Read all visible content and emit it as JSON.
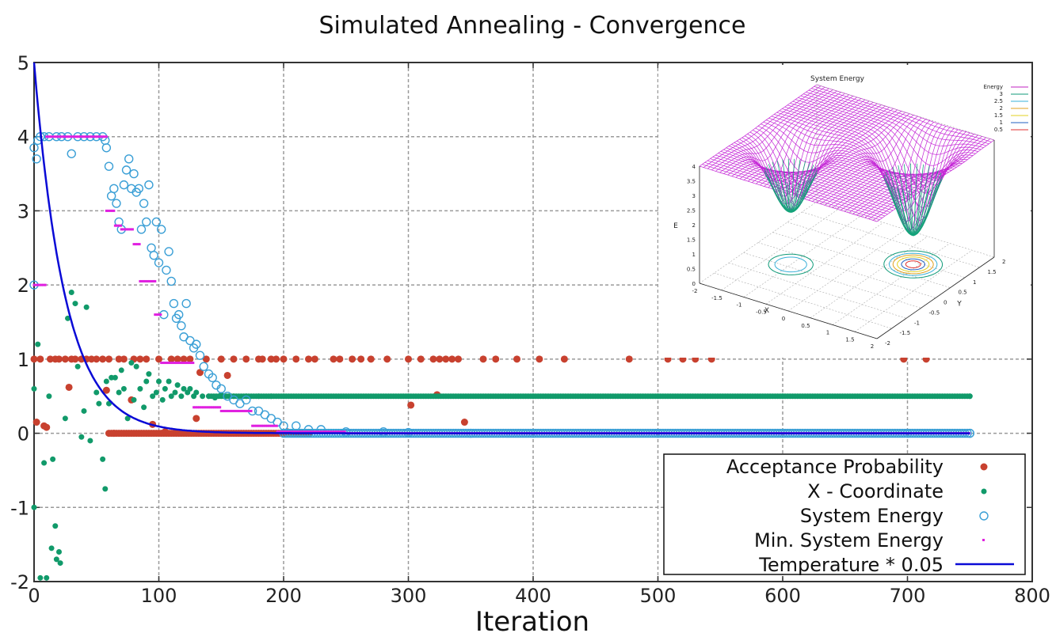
{
  "chart_data": [
    {
      "type": "scatter",
      "title": "Simulated Annealing - Convergence",
      "xlabel": "Iteration",
      "ylabel": "",
      "xlim": [
        0,
        800
      ],
      "ylim": [
        -2,
        5
      ],
      "xticks": [
        "0",
        "100",
        "200",
        "300",
        "400",
        "500",
        "600",
        "700",
        "800"
      ],
      "yticks": [
        "-2",
        "-1",
        "0",
        "1",
        "2",
        "3",
        "4",
        "5"
      ],
      "grid": true,
      "legend": "bottom-right",
      "series": [
        {
          "name": "Acceptance Probability",
          "style": "filled-circle",
          "color": "#c8412f",
          "points": [
            [
              0,
              1
            ],
            [
              2,
              0.15
            ],
            [
              5,
              1
            ],
            [
              8,
              0.1
            ],
            [
              10,
              0.08
            ],
            [
              13,
              1
            ],
            [
              17,
              1
            ],
            [
              20,
              1
            ],
            [
              25,
              1
            ],
            [
              28,
              0.62
            ],
            [
              30,
              1
            ],
            [
              33,
              1
            ],
            [
              38,
              1
            ],
            [
              42,
              1
            ],
            [
              46,
              1
            ],
            [
              50,
              1
            ],
            [
              55,
              1
            ],
            [
              58,
              0.58
            ],
            [
              60,
              1
            ],
            [
              64,
              0
            ],
            [
              68,
              1
            ],
            [
              72,
              1
            ],
            [
              78,
              0.45
            ],
            [
              80,
              1
            ],
            [
              85,
              1
            ],
            [
              90,
              1
            ],
            [
              95,
              0.12
            ],
            [
              100,
              1
            ],
            [
              105,
              0.02
            ],
            [
              110,
              1
            ],
            [
              115,
              1
            ],
            [
              120,
              1
            ],
            [
              125,
              1
            ],
            [
              130,
              0.2
            ],
            [
              133,
              0.82
            ],
            [
              138,
              1
            ],
            [
              150,
              1
            ],
            [
              155,
              0.78
            ],
            [
              160,
              1
            ],
            [
              170,
              1
            ],
            [
              180,
              1
            ],
            [
              183,
              1
            ],
            [
              190,
              1
            ],
            [
              194,
              1
            ],
            [
              200,
              1
            ],
            [
              203,
              0.02
            ],
            [
              210,
              1
            ],
            [
              220,
              1
            ],
            [
              225,
              1
            ],
            [
              240,
              1
            ],
            [
              245,
              1
            ],
            [
              255,
              1
            ],
            [
              262,
              1
            ],
            [
              270,
              1
            ],
            [
              283,
              1
            ],
            [
              300,
              1
            ],
            [
              302,
              0.38
            ],
            [
              310,
              1
            ],
            [
              320,
              1
            ],
            [
              323,
              0.52
            ],
            [
              325,
              1
            ],
            [
              330,
              1
            ],
            [
              335,
              1
            ],
            [
              340,
              1
            ],
            [
              345,
              0.15
            ],
            [
              360,
              1
            ],
            [
              370,
              1
            ],
            [
              387,
              1
            ],
            [
              405,
              1
            ],
            [
              425,
              1
            ],
            [
              477,
              1
            ],
            [
              508,
              1
            ],
            [
              520,
              1
            ],
            [
              530,
              1
            ],
            [
              543,
              1
            ],
            [
              697,
              1
            ],
            [
              715,
              1
            ]
          ]
        },
        {
          "name": "X - Coordinate",
          "style": "filled-dot",
          "color": "#119a6a",
          "points": [
            [
              0,
              -1
            ],
            [
              0,
              0.6
            ],
            [
              3,
              1.2
            ],
            [
              5,
              -1.95
            ],
            [
              8,
              -0.4
            ],
            [
              10,
              -1.95
            ],
            [
              12,
              0.5
            ],
            [
              14,
              -1.55
            ],
            [
              15,
              -0.35
            ],
            [
              17,
              -1.25
            ],
            [
              18,
              -1.7
            ],
            [
              20,
              -1.6
            ],
            [
              21,
              -1.75
            ],
            [
              25,
              0.2
            ],
            [
              27,
              1.55
            ],
            [
              30,
              1.9
            ],
            [
              33,
              1.75
            ],
            [
              35,
              0.9
            ],
            [
              38,
              -0.05
            ],
            [
              40,
              0.3
            ],
            [
              42,
              1.7
            ],
            [
              45,
              -0.1
            ],
            [
              50,
              0.55
            ],
            [
              52,
              0.4
            ],
            [
              55,
              -0.35
            ],
            [
              57,
              -0.75
            ],
            [
              58,
              0.7
            ],
            [
              60,
              0.4
            ],
            [
              62,
              0.75
            ],
            [
              65,
              0.75
            ],
            [
              68,
              0.55
            ],
            [
              70,
              0.85
            ],
            [
              72,
              0.6
            ],
            [
              75,
              0.2
            ],
            [
              78,
              0.95
            ],
            [
              80,
              0.45
            ],
            [
              82,
              0.9
            ],
            [
              85,
              0.6
            ],
            [
              88,
              0.35
            ],
            [
              90,
              0.7
            ],
            [
              92,
              0.8
            ],
            [
              95,
              0.5
            ],
            [
              98,
              0.55
            ],
            [
              100,
              0.7
            ],
            [
              103,
              0.45
            ],
            [
              105,
              0.6
            ],
            [
              108,
              0.7
            ],
            [
              110,
              0.5
            ],
            [
              113,
              0.55
            ],
            [
              115,
              0.65
            ],
            [
              118,
              0.5
            ],
            [
              120,
              0.6
            ],
            [
              123,
              0.55
            ],
            [
              125,
              0.6
            ],
            [
              128,
              0.5
            ],
            [
              130,
              0.55
            ],
            [
              135,
              0.5
            ],
            [
              140,
              0.5
            ],
            [
              145,
              0.48
            ],
            [
              150,
              0.52
            ],
            [
              160,
              0.5
            ],
            [
              170,
              0.5
            ],
            [
              180,
              0.5
            ],
            [
              190,
              0.5
            ],
            [
              200,
              0.5
            ],
            [
              300,
              0.5
            ],
            [
              400,
              0.5
            ],
            [
              500,
              0.5
            ],
            [
              600,
              0.5
            ],
            [
              700,
              0.5
            ],
            [
              750,
              0.5
            ]
          ]
        },
        {
          "name": "System Energy",
          "style": "open-circle",
          "color": "#3a9fd6",
          "points": [
            [
              0,
              2
            ],
            [
              0,
              3.85
            ],
            [
              2,
              3.7
            ],
            [
              3,
              3.95
            ],
            [
              5,
              4
            ],
            [
              8,
              4
            ],
            [
              12,
              4
            ],
            [
              18,
              4
            ],
            [
              22,
              4
            ],
            [
              27,
              4
            ],
            [
              30,
              3.77
            ],
            [
              35,
              4
            ],
            [
              40,
              4
            ],
            [
              45,
              4
            ],
            [
              50,
              4
            ],
            [
              55,
              4
            ],
            [
              57,
              3.95
            ],
            [
              58,
              3.85
            ],
            [
              60,
              3.6
            ],
            [
              62,
              3.2
            ],
            [
              64,
              3.3
            ],
            [
              66,
              3.1
            ],
            [
              68,
              2.85
            ],
            [
              70,
              2.75
            ],
            [
              72,
              3.35
            ],
            [
              74,
              3.55
            ],
            [
              76,
              3.7
            ],
            [
              78,
              3.3
            ],
            [
              80,
              3.5
            ],
            [
              82,
              3.25
            ],
            [
              84,
              3.3
            ],
            [
              86,
              2.75
            ],
            [
              88,
              3.1
            ],
            [
              90,
              2.85
            ],
            [
              92,
              3.35
            ],
            [
              94,
              2.5
            ],
            [
              96,
              2.4
            ],
            [
              98,
              2.85
            ],
            [
              100,
              2.3
            ],
            [
              102,
              2.75
            ],
            [
              104,
              1.6
            ],
            [
              106,
              2.2
            ],
            [
              108,
              2.45
            ],
            [
              110,
              2.05
            ],
            [
              112,
              1.75
            ],
            [
              114,
              1.55
            ],
            [
              116,
              1.6
            ],
            [
              118,
              1.45
            ],
            [
              120,
              1.3
            ],
            [
              122,
              1.75
            ],
            [
              125,
              1.25
            ],
            [
              128,
              1.15
            ],
            [
              130,
              1.2
            ],
            [
              133,
              1.05
            ],
            [
              136,
              0.9
            ],
            [
              140,
              0.8
            ],
            [
              143,
              0.75
            ],
            [
              146,
              0.65
            ],
            [
              150,
              0.6
            ],
            [
              155,
              0.5
            ],
            [
              160,
              0.45
            ],
            [
              165,
              0.4
            ],
            [
              170,
              0.45
            ],
            [
              175,
              0.3
            ],
            [
              180,
              0.3
            ],
            [
              185,
              0.25
            ],
            [
              190,
              0.2
            ],
            [
              195,
              0.15
            ],
            [
              200,
              0.1
            ],
            [
              210,
              0.1
            ],
            [
              220,
              0.05
            ],
            [
              230,
              0.05
            ],
            [
              250,
              0.02
            ],
            [
              280,
              0.02
            ],
            [
              300,
              0.01
            ],
            [
              350,
              0
            ],
            [
              400,
              0
            ],
            [
              500,
              0
            ],
            [
              600,
              0
            ],
            [
              700,
              0
            ],
            [
              750,
              0
            ]
          ]
        },
        {
          "name": "Min. System Energy",
          "style": "small-dot",
          "color": "#e020e0",
          "points": [
            [
              0,
              2
            ],
            [
              10,
              2
            ],
            [
              10,
              4
            ],
            [
              58,
              4
            ],
            [
              58,
              3
            ],
            [
              65,
              3
            ],
            [
              65,
              2.8
            ],
            [
              70,
              2.8
            ],
            [
              70,
              2.75
            ],
            [
              80,
              2.75
            ],
            [
              80,
              2.55
            ],
            [
              85,
              2.55
            ],
            [
              85,
              2.05
            ],
            [
              97,
              2.05
            ],
            [
              97,
              1.6
            ],
            [
              102,
              1.6
            ],
            [
              102,
              0.95
            ],
            [
              128,
              0.95
            ],
            [
              128,
              0.35
            ],
            [
              150,
              0.35
            ],
            [
              150,
              0.3
            ],
            [
              175,
              0.3
            ],
            [
              175,
              0.1
            ],
            [
              195,
              0.1
            ],
            [
              195,
              0.02
            ],
            [
              250,
              0.02
            ],
            [
              250,
              0
            ],
            [
              750,
              0
            ]
          ]
        },
        {
          "name": "Temperature * 0.05",
          "style": "line",
          "color": "#0a0ad6",
          "function": "5*exp(-x/25)",
          "x_range": [
            0,
            750
          ]
        }
      ]
    },
    {
      "type": "surface3d",
      "title": "System Energy",
      "xlabel": "X",
      "ylabel": "Y",
      "zlabel": "E",
      "xlim": [
        -2,
        2
      ],
      "ylim": [
        -2,
        2
      ],
      "zlim": [
        0,
        4
      ],
      "xticks": [
        "-2",
        "-1.5",
        "-1",
        "-0.5",
        "0",
        "0.5",
        "1",
        "1.5",
        "2"
      ],
      "yticks": [
        "-2",
        "-1.5",
        "-1",
        "-0.5",
        "0",
        "0.5",
        "1",
        "1.5",
        "2"
      ],
      "zticks": [
        "0",
        "0.5",
        "1",
        "1.5",
        "2",
        "2.5",
        "3",
        "3.5",
        "4"
      ],
      "legend": [
        {
          "label": "Energy",
          "color": "#c020c0"
        },
        {
          "label": "3",
          "color": "#0f9a78"
        },
        {
          "label": "2.5",
          "color": "#3ab0d8"
        },
        {
          "label": "2",
          "color": "#e0a020"
        },
        {
          "label": "1.5",
          "color": "#e0d020"
        },
        {
          "label": "1",
          "color": "#2060c0"
        },
        {
          "label": "0.5",
          "color": "#e03030"
        }
      ]
    }
  ]
}
